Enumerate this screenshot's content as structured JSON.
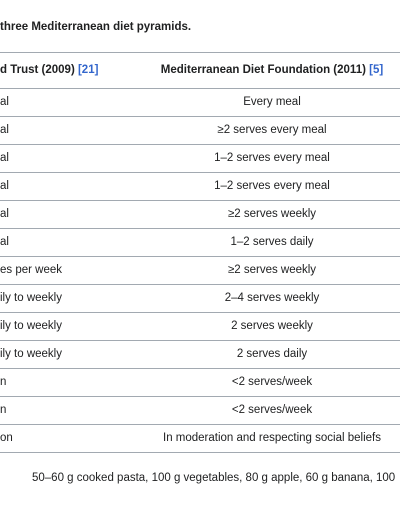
{
  "caption": "three Mediterranean diet pyramids.",
  "table": {
    "header": [
      {
        "text": "d Trust (2009) ",
        "ref": "[21]"
      },
      {
        "text": "Mediterranean Diet Foundation (2011) ",
        "ref": "[5]"
      }
    ],
    "rows": [
      [
        "al",
        "Every meal"
      ],
      [
        "al",
        "≥2 serves every meal"
      ],
      [
        "al",
        "1–2 serves every meal"
      ],
      [
        "al",
        "1–2 serves every meal"
      ],
      [
        "al",
        "≥2 serves weekly"
      ],
      [
        "al",
        "1–2 serves daily"
      ],
      [
        "es per week",
        "≥2 serves weekly"
      ],
      [
        "ily to weekly",
        "2–4 serves weekly"
      ],
      [
        "ily to weekly",
        "2 serves weekly"
      ],
      [
        "ily to weekly",
        "2 serves daily"
      ],
      [
        "n",
        "<2 serves/week"
      ],
      [
        "n",
        "<2 serves/week"
      ],
      [
        "on",
        "In moderation and respecting social beliefs"
      ]
    ]
  },
  "footnote": "50–60 g cooked pasta, 100 g vegetables, 80 g apple, 60 g banana, 100"
}
